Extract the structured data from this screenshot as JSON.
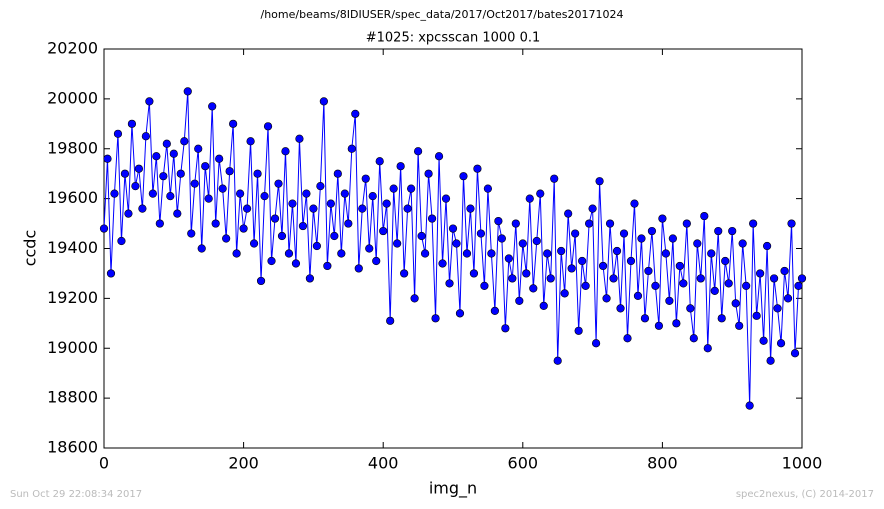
{
  "chart_data": {
    "type": "line",
    "suptitle": "/home/beams/8IDIUSER/spec_data/2017/Oct2017/bates20171024",
    "title": "#1025: xpcsscan 1000 0.1",
    "xlabel": "img_n",
    "ylabel": "ccdc",
    "footer_left": "Sun Oct 29 22:08:34 2017",
    "footer_right": "spec2nexus, (C) 2014-2017",
    "color": "#0000ff",
    "marker": true,
    "xlim": [
      0,
      1000
    ],
    "xticks": [
      0,
      200,
      400,
      600,
      800,
      1000
    ],
    "ylim": [
      18600,
      20200
    ],
    "yticks": [
      18600,
      18800,
      19000,
      19200,
      19400,
      19600,
      19800,
      20000,
      20200
    ],
    "x": [
      0,
      5,
      10,
      15,
      20,
      25,
      30,
      35,
      40,
      45,
      50,
      55,
      60,
      65,
      70,
      75,
      80,
      85,
      90,
      95,
      100,
      105,
      110,
      115,
      120,
      125,
      130,
      135,
      140,
      145,
      150,
      155,
      160,
      165,
      170,
      175,
      180,
      185,
      190,
      195,
      200,
      205,
      210,
      215,
      220,
      225,
      230,
      235,
      240,
      245,
      250,
      255,
      260,
      265,
      270,
      275,
      280,
      285,
      290,
      295,
      300,
      305,
      310,
      315,
      320,
      325,
      330,
      335,
      340,
      345,
      350,
      355,
      360,
      365,
      370,
      375,
      380,
      385,
      390,
      395,
      400,
      405,
      410,
      415,
      420,
      425,
      430,
      435,
      440,
      445,
      450,
      455,
      460,
      465,
      470,
      475,
      480,
      485,
      490,
      495,
      500,
      505,
      510,
      515,
      520,
      525,
      530,
      535,
      540,
      545,
      550,
      555,
      560,
      565,
      570,
      575,
      580,
      585,
      590,
      595,
      600,
      605,
      610,
      615,
      620,
      625,
      630,
      635,
      640,
      645,
      650,
      655,
      660,
      665,
      670,
      675,
      680,
      685,
      690,
      695,
      700,
      705,
      710,
      715,
      720,
      725,
      730,
      735,
      740,
      745,
      750,
      755,
      760,
      765,
      770,
      775,
      780,
      785,
      790,
      795,
      800,
      805,
      810,
      815,
      820,
      825,
      830,
      835,
      840,
      845,
      850,
      855,
      860,
      865,
      870,
      875,
      880,
      885,
      890,
      895,
      900,
      905,
      910,
      915,
      920,
      925,
      930,
      935,
      940,
      945,
      950,
      955,
      960,
      965,
      970,
      975,
      980,
      985,
      990,
      995,
      1000
    ],
    "values": [
      19480,
      19760,
      19300,
      19620,
      19860,
      19430,
      19700,
      19540,
      19900,
      19650,
      19720,
      19560,
      19850,
      19990,
      19620,
      19770,
      19500,
      19690,
      19820,
      19610,
      19780,
      19540,
      19700,
      19830,
      20030,
      19460,
      19660,
      19800,
      19400,
      19730,
      19600,
      19970,
      19500,
      19760,
      19640,
      19440,
      19710,
      19900,
      19380,
      19620,
      19480,
      19560,
      19830,
      19420,
      19700,
      19270,
      19610,
      19890,
      19350,
      19520,
      19660,
      19450,
      19790,
      19380,
      19580,
      19340,
      19840,
      19490,
      19620,
      19280,
      19560,
      19410,
      19650,
      19990,
      19330,
      19580,
      19450,
      19700,
      19380,
      19620,
      19500,
      19800,
      19940,
      19320,
      19560,
      19680,
      19400,
      19610,
      19350,
      19750,
      19470,
      19580,
      19110,
      19640,
      19420,
      19730,
      19300,
      19560,
      19640,
      19200,
      19790,
      19450,
      19380,
      19700,
      19520,
      19120,
      19770,
      19340,
      19600,
      19260,
      19480,
      19420,
      19140,
      19690,
      19380,
      19560,
      19300,
      19720,
      19460,
      19250,
      19640,
      19380,
      19150,
      19510,
      19440,
      19080,
      19360,
      19280,
      19500,
      19190,
      19420,
      19300,
      19600,
      19240,
      19430,
      19620,
      19170,
      19380,
      19280,
      19680,
      18950,
      19390,
      19220,
      19540,
      19320,
      19460,
      19070,
      19350,
      19250,
      19500,
      19560,
      19020,
      19670,
      19330,
      19200,
      19500,
      19280,
      19390,
      19160,
      19460,
      19040,
      19350,
      19580,
      19210,
      19440,
      19120,
      19310,
      19470,
      19250,
      19090,
      19520,
      19380,
      19190,
      19440,
      19100,
      19330,
      19260,
      19500,
      19160,
      19040,
      19420,
      19280,
      19530,
      19000,
      19380,
      19230,
      19470,
      19120,
      19350,
      19260,
      19470,
      19180,
      19090,
      19420,
      19250,
      18770,
      19500,
      19130,
      19300,
      19030,
      19410,
      18950,
      19280,
      19160,
      19020,
      19310,
      19200,
      19500,
      18980,
      19250,
      19280
    ]
  }
}
